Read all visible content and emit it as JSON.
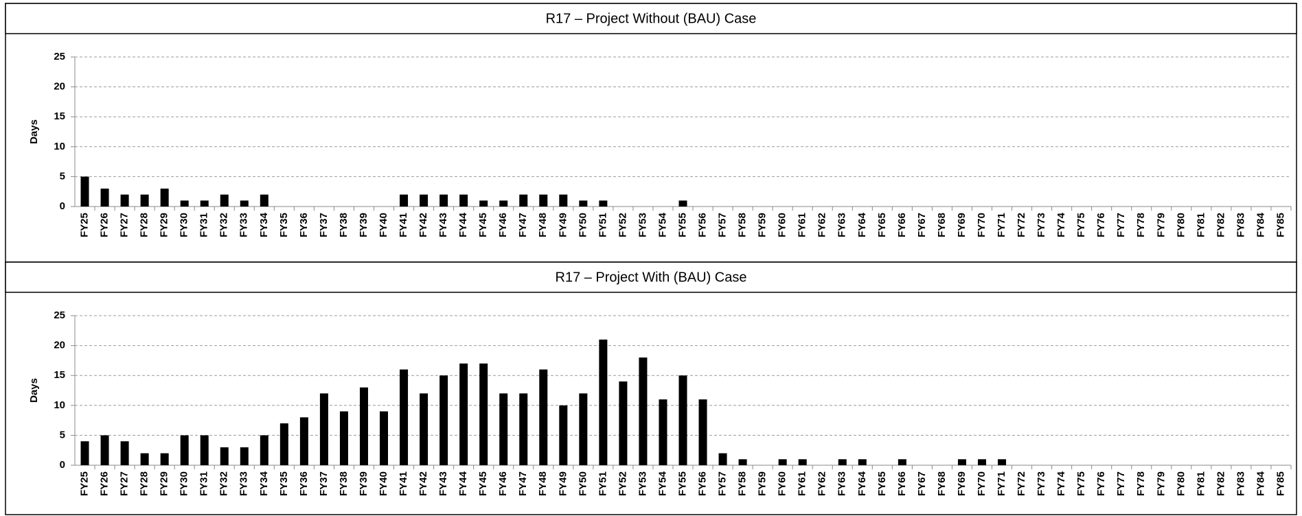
{
  "chart_data": [
    {
      "type": "bar",
      "title": "R17 – Project Without (BAU) Case",
      "y_label": "Days",
      "categories": [
        "FY25",
        "FY26",
        "FY27",
        "FY28",
        "FY29",
        "FY30",
        "FY31",
        "FY32",
        "FY33",
        "FY34",
        "FY35",
        "FY36",
        "FY37",
        "FY38",
        "FY39",
        "FY40",
        "FY41",
        "FY42",
        "FY43",
        "FY44",
        "FY45",
        "FY46",
        "FY47",
        "FY48",
        "FY49",
        "FY50",
        "FY51",
        "FY52",
        "FY53",
        "FY54",
        "FY55",
        "FY56",
        "FY57",
        "FY58",
        "FY59",
        "FY60",
        "FY61",
        "FY62",
        "FY63",
        "FY64",
        "FY65",
        "FY66",
        "FY67",
        "FY68",
        "FY69",
        "FY70",
        "FY71",
        "FY72",
        "FY73",
        "FY74",
        "FY75",
        "FY76",
        "FY77",
        "FY78",
        "FY79",
        "FY80",
        "FY81",
        "FY82",
        "FY83",
        "FY84",
        "FY85"
      ],
      "values": [
        5,
        3,
        2,
        2,
        3,
        1,
        1,
        2,
        1,
        2,
        0,
        0,
        0,
        0,
        0,
        0,
        2,
        2,
        2,
        2,
        1,
        1,
        2,
        2,
        2,
        1,
        1,
        0,
        0,
        0,
        1,
        0,
        0,
        0,
        0,
        0,
        0,
        0,
        0,
        0,
        0,
        0,
        0,
        0,
        0,
        0,
        0,
        0,
        0,
        0,
        0,
        0,
        0,
        0,
        0,
        0,
        0,
        0,
        0,
        0,
        0
      ],
      "color": "#000000",
      "ylim": [
        0,
        25
      ],
      "yticks": [
        0,
        5,
        10,
        15,
        20,
        25
      ],
      "grid": true
    },
    {
      "type": "bar",
      "title": "R17 – Project With (BAU) Case",
      "y_label": "Days",
      "categories": [
        "FY25",
        "FY26",
        "FY27",
        "FY28",
        "FY29",
        "FY30",
        "FY31",
        "FY32",
        "FY33",
        "FY34",
        "FY35",
        "FY36",
        "FY37",
        "FY38",
        "FY39",
        "FY40",
        "FY41",
        "FY42",
        "FY43",
        "FY44",
        "FY45",
        "FY46",
        "FY47",
        "FY48",
        "FY49",
        "FY50",
        "FY51",
        "FY52",
        "FY53",
        "FY54",
        "FY55",
        "FY56",
        "FY57",
        "FY58",
        "FY59",
        "FY60",
        "FY61",
        "FY62",
        "FY63",
        "FY64",
        "FY65",
        "FY66",
        "FY67",
        "FY68",
        "FY69",
        "FY70",
        "FY71",
        "FY72",
        "FY73",
        "FY74",
        "FY75",
        "FY76",
        "FY77",
        "FY78",
        "FY79",
        "FY80",
        "FY81",
        "FY82",
        "FY83",
        "FY84",
        "FY85"
      ],
      "values": [
        4,
        5,
        4,
        2,
        2,
        5,
        5,
        3,
        3,
        5,
        7,
        8,
        12,
        9,
        13,
        9,
        16,
        12,
        15,
        17,
        17,
        12,
        12,
        16,
        10,
        12,
        21,
        14,
        18,
        11,
        15,
        11,
        2,
        1,
        0,
        1,
        1,
        0,
        1,
        1,
        0,
        1,
        0,
        0,
        1,
        1,
        1,
        0,
        0,
        0,
        0,
        0,
        0,
        0,
        0,
        0,
        0,
        0,
        0,
        0,
        0
      ],
      "color": "#000000",
      "ylim": [
        0,
        25
      ],
      "yticks": [
        0,
        5,
        10,
        15,
        20,
        25
      ],
      "grid": true
    }
  ]
}
